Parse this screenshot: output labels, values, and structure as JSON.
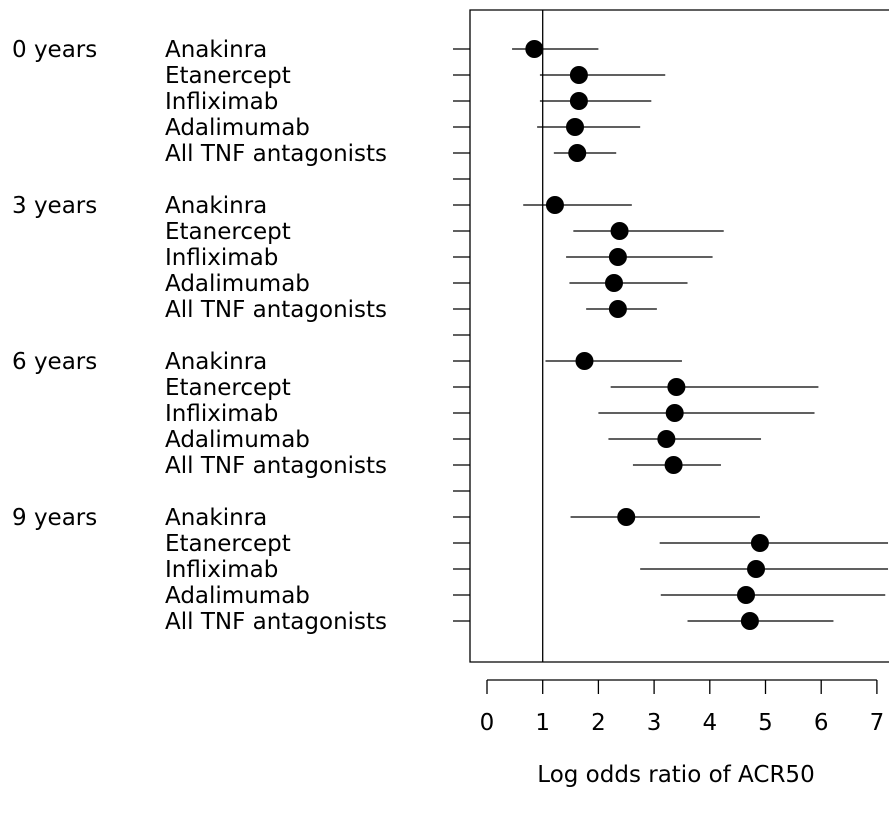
{
  "chart_data": {
    "type": "forest",
    "xlabel": "Log odds ratio of ACR50",
    "xticks": [
      0,
      1,
      2,
      3,
      4,
      5,
      6,
      7
    ],
    "xlim": [
      -0.3,
      7.15
    ],
    "reference_line": 1,
    "groups": [
      {
        "label": "0 years",
        "rows": [
          {
            "name": "Anakinra",
            "estimate": 0.85,
            "lower": 0.45,
            "upper": 2.0
          },
          {
            "name": "Etanercept",
            "estimate": 1.65,
            "lower": 0.95,
            "upper": 3.2
          },
          {
            "name": "Infliximab",
            "estimate": 1.65,
            "lower": 0.95,
            "upper": 2.95
          },
          {
            "name": "Adalimumab",
            "estimate": 1.58,
            "lower": 0.9,
            "upper": 2.75
          },
          {
            "name": "All TNF antagonists",
            "estimate": 1.62,
            "lower": 1.2,
            "upper": 2.32
          }
        ]
      },
      {
        "label": "3 years",
        "rows": [
          {
            "name": "Anakinra",
            "estimate": 1.22,
            "lower": 0.65,
            "upper": 2.6
          },
          {
            "name": "Etanercept",
            "estimate": 2.38,
            "lower": 1.55,
            "upper": 4.25
          },
          {
            "name": "Infliximab",
            "estimate": 2.35,
            "lower": 1.42,
            "upper": 4.05
          },
          {
            "name": "Adalimumab",
            "estimate": 2.28,
            "lower": 1.48,
            "upper": 3.6
          },
          {
            "name": "All TNF antagonists",
            "estimate": 2.35,
            "lower": 1.78,
            "upper": 3.05
          }
        ]
      },
      {
        "label": "6 years",
        "rows": [
          {
            "name": "Anakinra",
            "estimate": 1.75,
            "lower": 1.05,
            "upper": 3.5
          },
          {
            "name": "Etanercept",
            "estimate": 3.4,
            "lower": 2.22,
            "upper": 5.95
          },
          {
            "name": "Infliximab",
            "estimate": 3.37,
            "lower": 2.0,
            "upper": 5.88
          },
          {
            "name": "Adalimumab",
            "estimate": 3.22,
            "lower": 2.18,
            "upper": 4.92
          },
          {
            "name": "All TNF antagonists",
            "estimate": 3.35,
            "lower": 2.62,
            "upper": 4.2
          }
        ]
      },
      {
        "label": "9 years",
        "rows": [
          {
            "name": "Anakinra",
            "estimate": 2.5,
            "lower": 1.5,
            "upper": 4.9
          },
          {
            "name": "Etanercept",
            "estimate": 4.9,
            "lower": 3.1,
            "upper": 7.2
          },
          {
            "name": "Infliximab",
            "estimate": 4.83,
            "lower": 2.75,
            "upper": 7.2
          },
          {
            "name": "Adalimumab",
            "estimate": 4.65,
            "lower": 3.12,
            "upper": 7.15
          },
          {
            "name": "All TNF antagonists",
            "estimate": 4.72,
            "lower": 3.6,
            "upper": 6.22
          }
        ]
      }
    ]
  }
}
